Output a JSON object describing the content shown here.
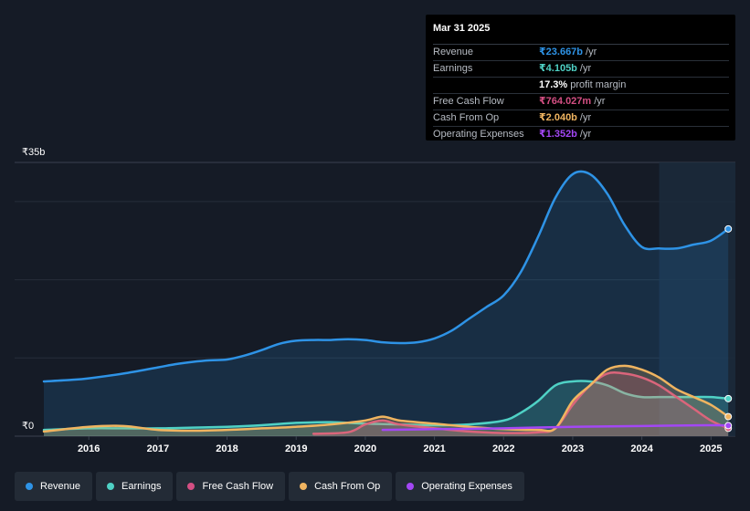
{
  "tooltip": {
    "date": "Mar 31 2025",
    "rows": [
      {
        "label": "Revenue",
        "value": "₹23.667b",
        "unit": "/yr",
        "color": "#2e93e6"
      },
      {
        "label": "Earnings",
        "value": "₹4.105b",
        "unit": "/yr",
        "color": "#4fd1c5"
      },
      {
        "label": "",
        "value": "17.3%",
        "unit": "profit margin",
        "color": "#ffffff"
      },
      {
        "label": "Free Cash Flow",
        "value": "₹764.027m",
        "unit": "/yr",
        "color": "#d44f83"
      },
      {
        "label": "Cash From Op",
        "value": "₹2.040b",
        "unit": "/yr",
        "color": "#f0b460"
      },
      {
        "label": "Operating Expenses",
        "value": "₹1.352b",
        "unit": "/yr",
        "color": "#a347f5"
      }
    ]
  },
  "legend": [
    {
      "label": "Revenue",
      "color": "#2e93e6"
    },
    {
      "label": "Earnings",
      "color": "#4fd1c5"
    },
    {
      "label": "Free Cash Flow",
      "color": "#d44f83"
    },
    {
      "label": "Cash From Op",
      "color": "#f0b460"
    },
    {
      "label": "Operating Expenses",
      "color": "#a347f5"
    }
  ],
  "chart_data": {
    "type": "line",
    "y_top_label": "₹35b",
    "y_bottom_label": "₹0",
    "ylim": [
      0,
      35
    ],
    "xlim": [
      2015.35,
      2025.3
    ],
    "x_ticks": [
      2016,
      2017,
      2018,
      2019,
      2020,
      2021,
      2022,
      2023,
      2024,
      2025
    ],
    "x_tick_labels": [
      "2016",
      "2017",
      "2018",
      "2019",
      "2020",
      "2021",
      "2022",
      "2023",
      "2024",
      "2025"
    ],
    "forecast_start": 2024.25,
    "grid": true,
    "series": [
      {
        "name": "Revenue",
        "color": "#2e93e6",
        "fill": true,
        "x": [
          2015.35,
          2015.75,
          2016.0,
          2016.5,
          2017.0,
          2017.25,
          2017.5,
          2017.75,
          2018.0,
          2018.25,
          2018.5,
          2018.75,
          2019.0,
          2019.25,
          2019.5,
          2019.75,
          2020.0,
          2020.25,
          2020.5,
          2020.75,
          2021.0,
          2021.25,
          2021.5,
          2021.75,
          2022.0,
          2022.25,
          2022.5,
          2022.75,
          2023.0,
          2023.25,
          2023.5,
          2023.75,
          2024.0,
          2024.25,
          2024.5,
          2024.75,
          2025.0,
          2025.25
        ],
        "y": [
          7.0,
          7.2,
          7.4,
          8.0,
          8.8,
          9.2,
          9.5,
          9.7,
          9.8,
          10.3,
          11.0,
          11.8,
          12.2,
          12.3,
          12.3,
          12.4,
          12.3,
          12.0,
          11.9,
          12.0,
          12.5,
          13.5,
          15.0,
          16.5,
          18.0,
          21.0,
          25.5,
          30.5,
          33.5,
          33.5,
          31.0,
          27.0,
          24.2,
          24.0,
          24.0,
          24.5,
          25.0,
          26.5
        ]
      },
      {
        "name": "Earnings",
        "color": "#4fd1c5",
        "fill": true,
        "x": [
          2015.35,
          2016.0,
          2016.5,
          2017.0,
          2017.5,
          2018.0,
          2018.5,
          2019.0,
          2019.5,
          2020.0,
          2020.5,
          2021.0,
          2021.5,
          2022.0,
          2022.25,
          2022.5,
          2022.75,
          2023.0,
          2023.25,
          2023.5,
          2023.75,
          2024.0,
          2024.25,
          2024.5,
          2024.75,
          2025.0,
          2025.25
        ],
        "y": [
          0.8,
          1.0,
          1.0,
          1.0,
          1.1,
          1.2,
          1.4,
          1.7,
          1.8,
          1.6,
          1.5,
          1.4,
          1.5,
          2.0,
          3.0,
          4.5,
          6.5,
          7.0,
          7.0,
          6.5,
          5.5,
          5.0,
          5.0,
          5.0,
          5.0,
          5.0,
          4.8
        ]
      },
      {
        "name": "Free Cash Flow",
        "color": "#d44f83",
        "fill": true,
        "x": [
          2019.25,
          2019.75,
          2020.0,
          2020.25,
          2020.5,
          2021.0,
          2021.5,
          2022.0,
          2022.5,
          2022.75,
          2023.0,
          2023.25,
          2023.5,
          2023.75,
          2024.0,
          2024.25,
          2024.5,
          2024.75,
          2025.0,
          2025.25
        ],
        "y": [
          0.3,
          0.5,
          1.5,
          2.0,
          1.5,
          1.0,
          0.6,
          0.4,
          0.5,
          1.0,
          4.0,
          6.5,
          8.0,
          8.0,
          7.5,
          6.5,
          5.0,
          3.5,
          2.0,
          1.0
        ]
      },
      {
        "name": "Cash From Op",
        "color": "#f0b460",
        "fill": true,
        "x": [
          2015.35,
          2016.0,
          2016.5,
          2017.0,
          2017.5,
          2018.0,
          2018.5,
          2019.0,
          2019.5,
          2020.0,
          2020.25,
          2020.5,
          2021.0,
          2021.5,
          2022.0,
          2022.5,
          2022.75,
          2023.0,
          2023.25,
          2023.5,
          2023.75,
          2024.0,
          2024.25,
          2024.5,
          2024.75,
          2025.0,
          2025.25
        ],
        "y": [
          0.6,
          1.2,
          1.3,
          0.8,
          0.7,
          0.8,
          1.0,
          1.2,
          1.5,
          2.0,
          2.5,
          2.0,
          1.6,
          1.2,
          0.9,
          0.8,
          1.0,
          4.5,
          6.5,
          8.5,
          9.0,
          8.5,
          7.5,
          6.0,
          5.0,
          4.0,
          2.5
        ]
      },
      {
        "name": "Operating Expenses",
        "color": "#a347f5",
        "fill": false,
        "x": [
          2020.25,
          2021.0,
          2022.0,
          2023.0,
          2024.0,
          2025.0,
          2025.25
        ],
        "y": [
          0.8,
          0.9,
          1.0,
          1.2,
          1.3,
          1.4,
          1.35
        ]
      }
    ]
  }
}
